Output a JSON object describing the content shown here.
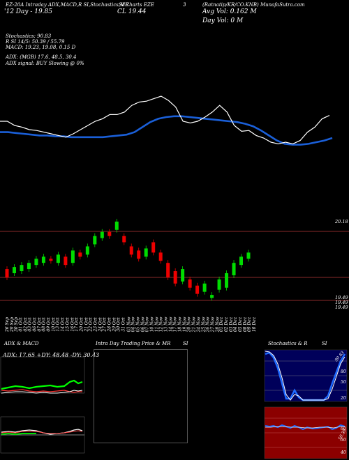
{
  "header": {
    "line1_left": "EZ-20A Intraday ADX,MACD,R SI,Stochastics,MR",
    "line1_mid": "SI Charts EZE",
    "line1_mid2": "3",
    "line1_right": "(Ratnatip/KR/CO.KNB) MunafaSutra.com",
    "line2_left": "'12 Day - 19.85",
    "line2_mid": "CL 19.44",
    "line2_right": "Avg Vol: 0.162 M",
    "line3_right": "Day Vol: 0   M"
  },
  "indicators": {
    "stoch": "Stochastics: 90.83",
    "rsi": "R                  SI 14/5: 50.39 / 55.79",
    "macd": "MACD: 19.23, 19.08, 0.15 D",
    "adx": "ADX:                               (MGB) 17.6, 48.5, 30.4",
    "adx_signal": "ADX   signal:                     BUY Slowing @ 0%"
  },
  "price_axis": {
    "top_label": "20.18",
    "low1": "19.49",
    "low2": "19.49",
    "low3": "19.49"
  },
  "dates": [
    "26 Sep",
    "29 Sep",
    "30 Sep",
    "01 Oct",
    "02 Oct",
    "03 Oct",
    "06 Oct",
    "07 Oct",
    "08 Oct",
    "09 Oct",
    "10 Oct",
    "13 Oct",
    "14 Oct",
    "15 Oct",
    "16 Oct",
    "17 Oct",
    "20 Oct",
    "21 Oct",
    "22 Oct",
    "23 Oct",
    "24 Oct",
    "27 Oct",
    "28 Oct",
    "29 Oct",
    "30 Oct",
    "31 Oct",
    "03 Nov",
    "04 Nov",
    "05 Nov",
    "06 Nov",
    "07 Nov",
    "10 Nov",
    "11 Nov",
    "12 Nov",
    "13 Nov",
    "14 Nov",
    "17 Nov",
    "18 Nov",
    "19 Nov",
    "20 Nov",
    "21 Nov",
    "24 Nov",
    "25 Nov",
    "26 Nov",
    "27 Nov",
    "28 Nov",
    "01 Dec",
    "02 Dec",
    "03 Dec",
    "04 Dec",
    "05 Dec",
    "08 Dec",
    "09 Dec",
    "10 Dec"
  ],
  "panels": {
    "adx_title": "ADX  & MACD",
    "adx_value": "ADX: 17.65 +DY: 48.48 -DY: 30.43",
    "intra_title": "Intra  Day Trading Price  & MR",
    "intra_title2": "SI",
    "stoch_title": "Stochastics & R",
    "stoch_title2": "SI",
    "stoch_value": "90.83",
    "stoch_axis": [
      "80",
      "50",
      "20"
    ],
    "rsi_axis": [
      "60",
      "50",
      "40"
    ],
    "rsi_value": "50.39"
  },
  "colors": {
    "up": "#00dd00",
    "down": "#ee0000",
    "ma": "#1a5fd8",
    "adx_plus": "#00ff00",
    "adx_minus": "#ff2222",
    "rsi_bg": "#8b0000",
    "stoch_bg": "#00005a"
  },
  "chart_data": [
    {
      "type": "line",
      "series": [
        {
          "values": [
            0.55,
            0.55,
            0.5,
            0.48,
            0.45,
            0.44,
            0.42,
            0.4,
            0.38,
            0.36,
            0.4,
            0.45,
            0.5,
            0.55,
            0.58,
            0.63,
            0.63,
            0.66,
            0.74,
            0.78,
            0.79,
            0.82,
            0.85,
            0.8,
            0.72,
            0.55,
            0.53,
            0.55,
            0.6,
            0.66,
            0.74,
            0.66,
            0.5,
            0.43,
            0.44,
            0.38,
            0.35,
            0.3,
            0.28,
            0.3,
            0.28,
            0.32,
            0.42,
            0.48,
            0.58,
            0.62
          ]
        },
        {
          "values": [
            0.42,
            0.42,
            0.41,
            0.4,
            0.39,
            0.38,
            0.38,
            0.37,
            0.37,
            0.36,
            0.36,
            0.36,
            0.36,
            0.36,
            0.37,
            0.38,
            0.39,
            0.42,
            0.48,
            0.54,
            0.58,
            0.6,
            0.61,
            0.61,
            0.6,
            0.59,
            0.58,
            0.57,
            0.56,
            0.55,
            0.54,
            0.52,
            0.49,
            0.44,
            0.38,
            0.32,
            0.28,
            0.27,
            0.27,
            0.28,
            0.3,
            0.32,
            0.35
          ]
        }
      ]
    },
    {
      "type": "bar",
      "series": [
        {
          "name": "candles",
          "values": [
            {
              "o": 19.8,
              "c": 19.72
            },
            {
              "o": 19.76,
              "c": 19.82
            },
            {
              "o": 19.78,
              "c": 19.84
            },
            {
              "o": 19.8,
              "c": 19.86
            },
            {
              "o": 19.84,
              "c": 19.9
            },
            {
              "o": 19.86,
              "c": 19.92
            },
            {
              "o": 19.9,
              "c": 19.88
            },
            {
              "o": 19.86,
              "c": 19.94
            },
            {
              "o": 19.92,
              "c": 19.84
            },
            {
              "o": 19.86,
              "c": 19.98
            },
            {
              "o": 19.96,
              "c": 19.92
            },
            {
              "o": 19.94,
              "c": 20.02
            },
            {
              "o": 20.04,
              "c": 20.12
            },
            {
              "o": 20.1,
              "c": 20.16
            },
            {
              "o": 20.16,
              "c": 20.12
            },
            {
              "o": 20.18,
              "c": 20.26
            },
            {
              "o": 20.12,
              "c": 20.06
            },
            {
              "o": 20.02,
              "c": 19.94
            },
            {
              "o": 19.98,
              "c": 19.9
            },
            {
              "o": 19.92,
              "c": 20.0
            },
            {
              "o": 20.06,
              "c": 19.96
            },
            {
              "o": 19.96,
              "c": 19.88
            },
            {
              "o": 19.86,
              "c": 19.72
            },
            {
              "o": 19.78,
              "c": 19.66
            },
            {
              "o": 19.68,
              "c": 19.8
            },
            {
              "o": 19.7,
              "c": 19.62
            },
            {
              "o": 19.64,
              "c": 19.56
            },
            {
              "o": 19.58,
              "c": 19.66
            },
            {
              "o": 19.52,
              "c": 19.55
            },
            {
              "o": 19.6,
              "c": 19.7
            },
            {
              "o": 19.62,
              "c": 19.76
            },
            {
              "o": 19.74,
              "c": 19.86
            },
            {
              "o": 19.84,
              "c": 19.92
            },
            {
              "o": 19.9,
              "c": 19.96
            }
          ]
        }
      ]
    }
  ]
}
